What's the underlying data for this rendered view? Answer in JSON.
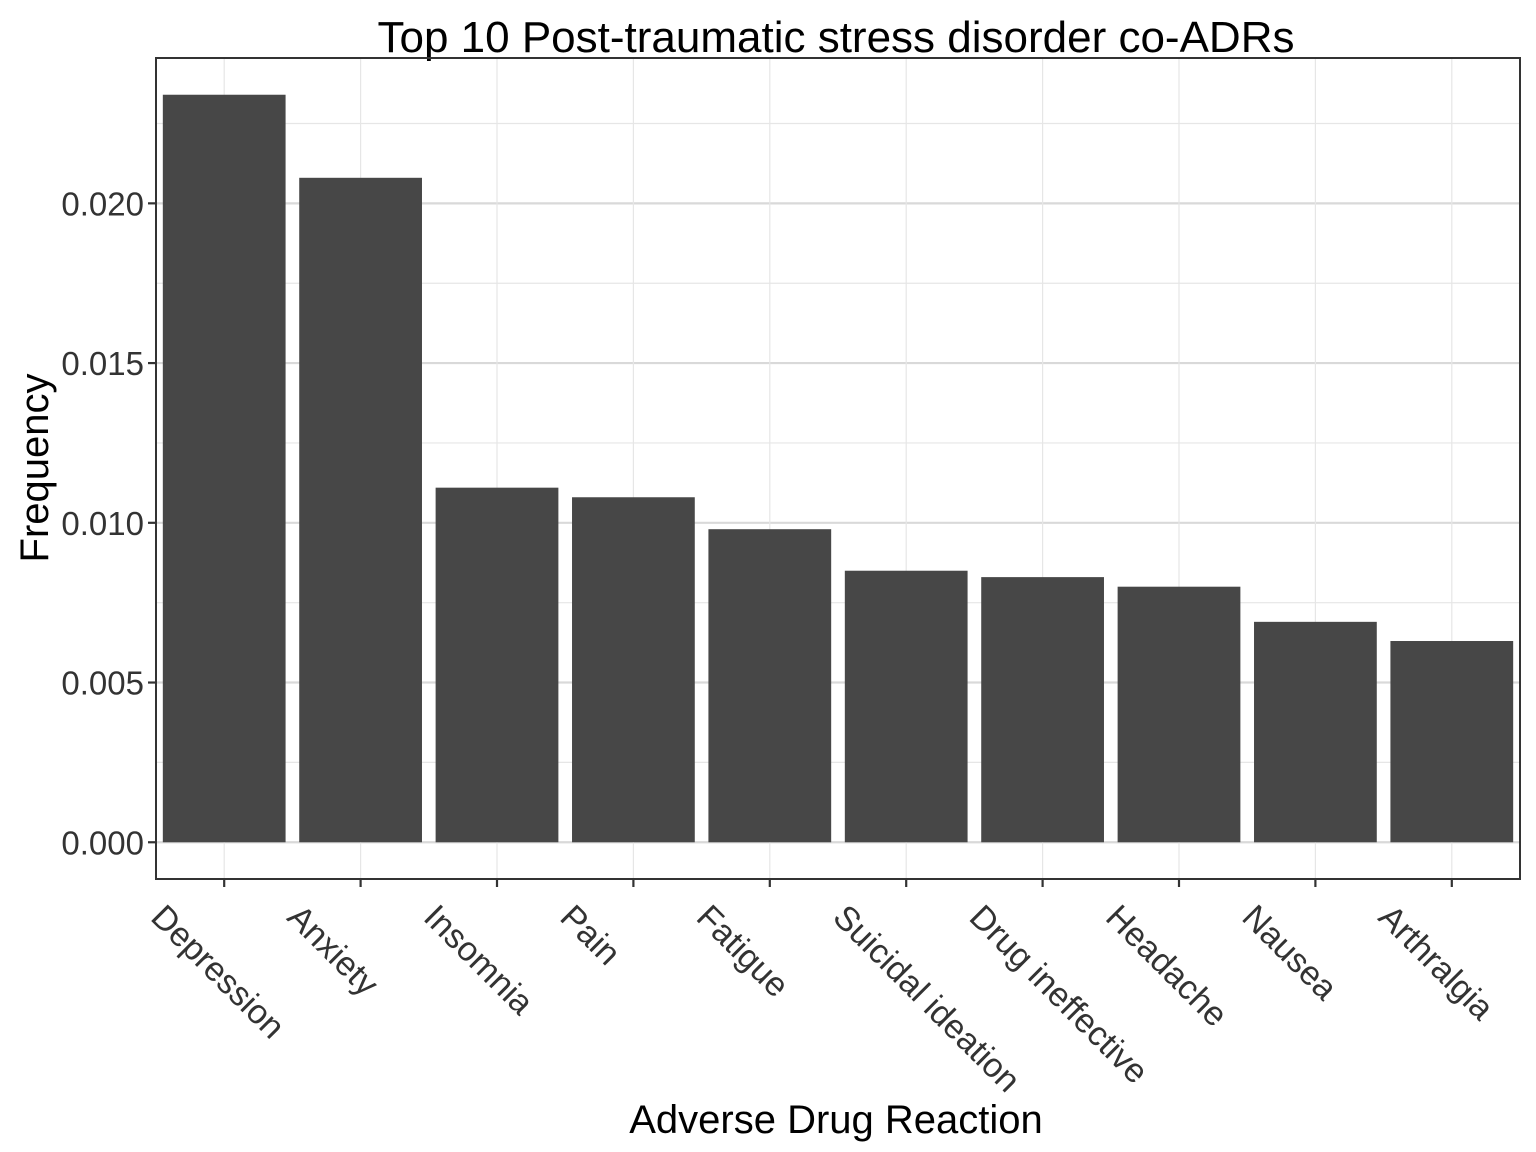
{
  "chart_data": {
    "type": "bar",
    "title": "Top 10 Post-traumatic stress disorder co-ADRs",
    "xlabel": "Adverse Drug Reaction",
    "ylabel": "Frequency",
    "categories": [
      "Depression",
      "Anxiety",
      "Insomnia",
      "Pain",
      "Fatigue",
      "Suicidal ideation",
      "Drug ineffective",
      "Headache",
      "Nausea",
      "Arthralgia"
    ],
    "values": [
      0.0234,
      0.0208,
      0.0111,
      0.0108,
      0.0098,
      0.0085,
      0.0083,
      0.008,
      0.0069,
      0.0063
    ],
    "ylim": [
      -0.00115,
      0.02455
    ],
    "yticks": [
      0,
      0.005,
      0.01,
      0.015,
      0.02
    ],
    "ytick_labels": [
      "0.000",
      "0.005",
      "0.010",
      "0.015",
      "0.020"
    ],
    "grid": true,
    "bar_color": "#474747",
    "legend": "none"
  }
}
